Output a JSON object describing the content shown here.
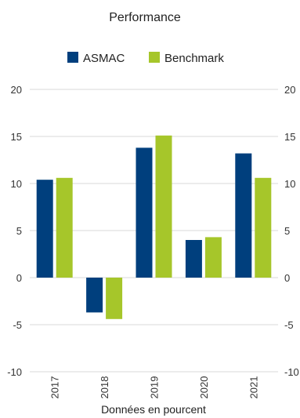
{
  "chart_data": {
    "type": "bar",
    "title": "Performance",
    "xlabel": "Données en pourcent",
    "ylabel": "",
    "categories": [
      "2017",
      "2018",
      "2019",
      "2020",
      "2021"
    ],
    "series": [
      {
        "name": "ASMAC",
        "color": "#003f7d",
        "values": [
          10.4,
          -3.7,
          13.8,
          4.0,
          13.2
        ]
      },
      {
        "name": "Benchmark",
        "color": "#a6c62a",
        "values": [
          10.6,
          -4.4,
          15.1,
          4.3,
          10.6
        ]
      }
    ],
    "ylim": [
      -10,
      20
    ],
    "yticks": [
      -10,
      -5,
      0,
      5,
      10,
      15,
      20
    ],
    "grid": true,
    "legend_position": "top",
    "secondary_axis": true
  }
}
